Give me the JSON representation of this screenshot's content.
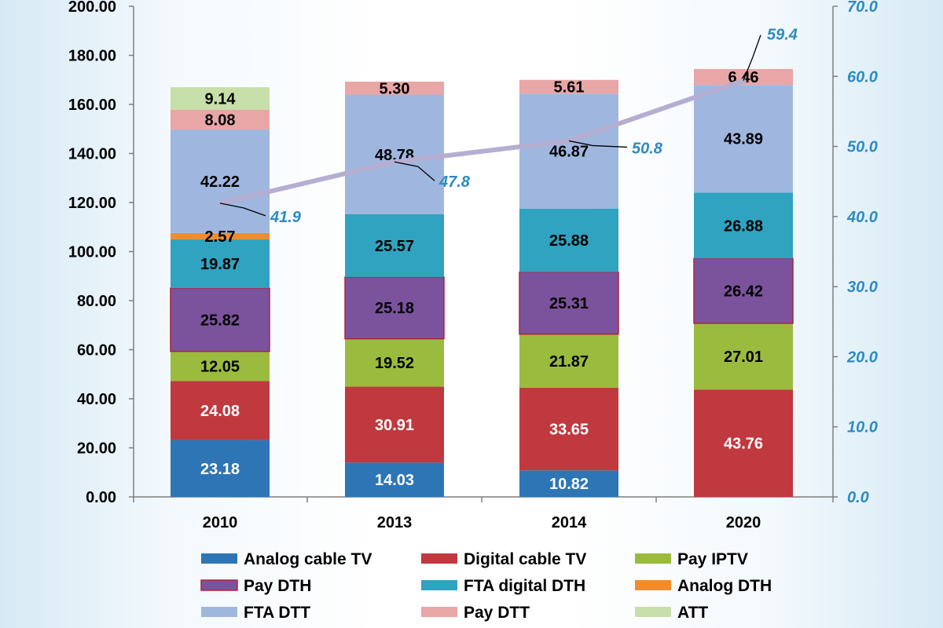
{
  "chart_data": {
    "type": "bar",
    "stacked": true,
    "categories": [
      "2010",
      "2013",
      "2014",
      "2020"
    ],
    "ylim": [
      0,
      200
    ],
    "y_ticks": [
      "0.00",
      "20.00",
      "40.00",
      "60.00",
      "80.00",
      "100.00",
      "120.00",
      "140.00",
      "160.00",
      "180.00",
      "200.00"
    ],
    "y2lim": [
      0,
      70
    ],
    "y2_ticks": [
      "0.0",
      "10.0",
      "20.0",
      "30.0",
      "40.0",
      "50.0",
      "60.0",
      "70.0"
    ],
    "series": [
      {
        "name": "Analog cable TV",
        "color": "#2e75b6",
        "text_color": "#ffffff",
        "values": [
          23.18,
          14.03,
          10.82,
          0
        ],
        "labels": [
          "23.18",
          "14.03",
          "10.82",
          ""
        ]
      },
      {
        "name": "Digital cable TV",
        "color": "#c0393f",
        "text_color": "#ffffff",
        "values": [
          24.08,
          30.91,
          33.65,
          43.76
        ],
        "labels": [
          "24.08",
          "30.91",
          "33.65",
          "43.76"
        ]
      },
      {
        "name": "Pay IPTV",
        "color": "#9bbb3f",
        "text_color": "#000000",
        "values": [
          12.05,
          19.52,
          21.87,
          27.01
        ],
        "labels": [
          "12.05",
          "19.52",
          "21.87",
          "27.01"
        ]
      },
      {
        "name": "Pay DTH",
        "color": "#7b539c",
        "text_color": "#000000",
        "border": "#b3203a",
        "values": [
          25.82,
          25.18,
          25.31,
          26.42
        ],
        "labels": [
          "25.82",
          "25.18",
          "25.31",
          "26.42"
        ]
      },
      {
        "name": "FTA digital DTH",
        "color": "#2fa3c0",
        "text_color": "#000000",
        "values": [
          19.87,
          25.57,
          25.88,
          26.88
        ],
        "labels": [
          "19.87",
          "25.57",
          "25.88",
          "26.88"
        ]
      },
      {
        "name": "Analog DTH",
        "color": "#ee8c2e",
        "text_color": "#000000",
        "values": [
          2.57,
          0,
          0,
          0
        ],
        "labels": [
          "2.57",
          "",
          "",
          ""
        ]
      },
      {
        "name": "FTA DTT",
        "color": "#9fb7df",
        "text_color": "#000000",
        "values": [
          42.22,
          48.78,
          46.87,
          43.89
        ],
        "labels": [
          "42.22",
          "48.78",
          "46.87",
          "43.89"
        ]
      },
      {
        "name": "Pay DTT",
        "color": "#e8a6a6",
        "text_color": "#000000",
        "values": [
          8.08,
          5.3,
          5.61,
          6.46
        ],
        "labels": [
          "8.08",
          "5.30",
          "5.61",
          "6.46"
        ]
      },
      {
        "name": "ATT",
        "color": "#c7dfa8",
        "text_color": "#000000",
        "values": [
          9.14,
          0,
          0,
          0
        ],
        "labels": [
          "9.14",
          "",
          "",
          ""
        ]
      }
    ],
    "line": {
      "axis": "secondary",
      "color": "#b5aed2",
      "values": [
        41.9,
        47.8,
        50.8,
        59.4
      ],
      "labels": [
        "41.9",
        "47.8",
        "50.8",
        "59.4"
      ]
    },
    "legend_position": "bottom"
  }
}
